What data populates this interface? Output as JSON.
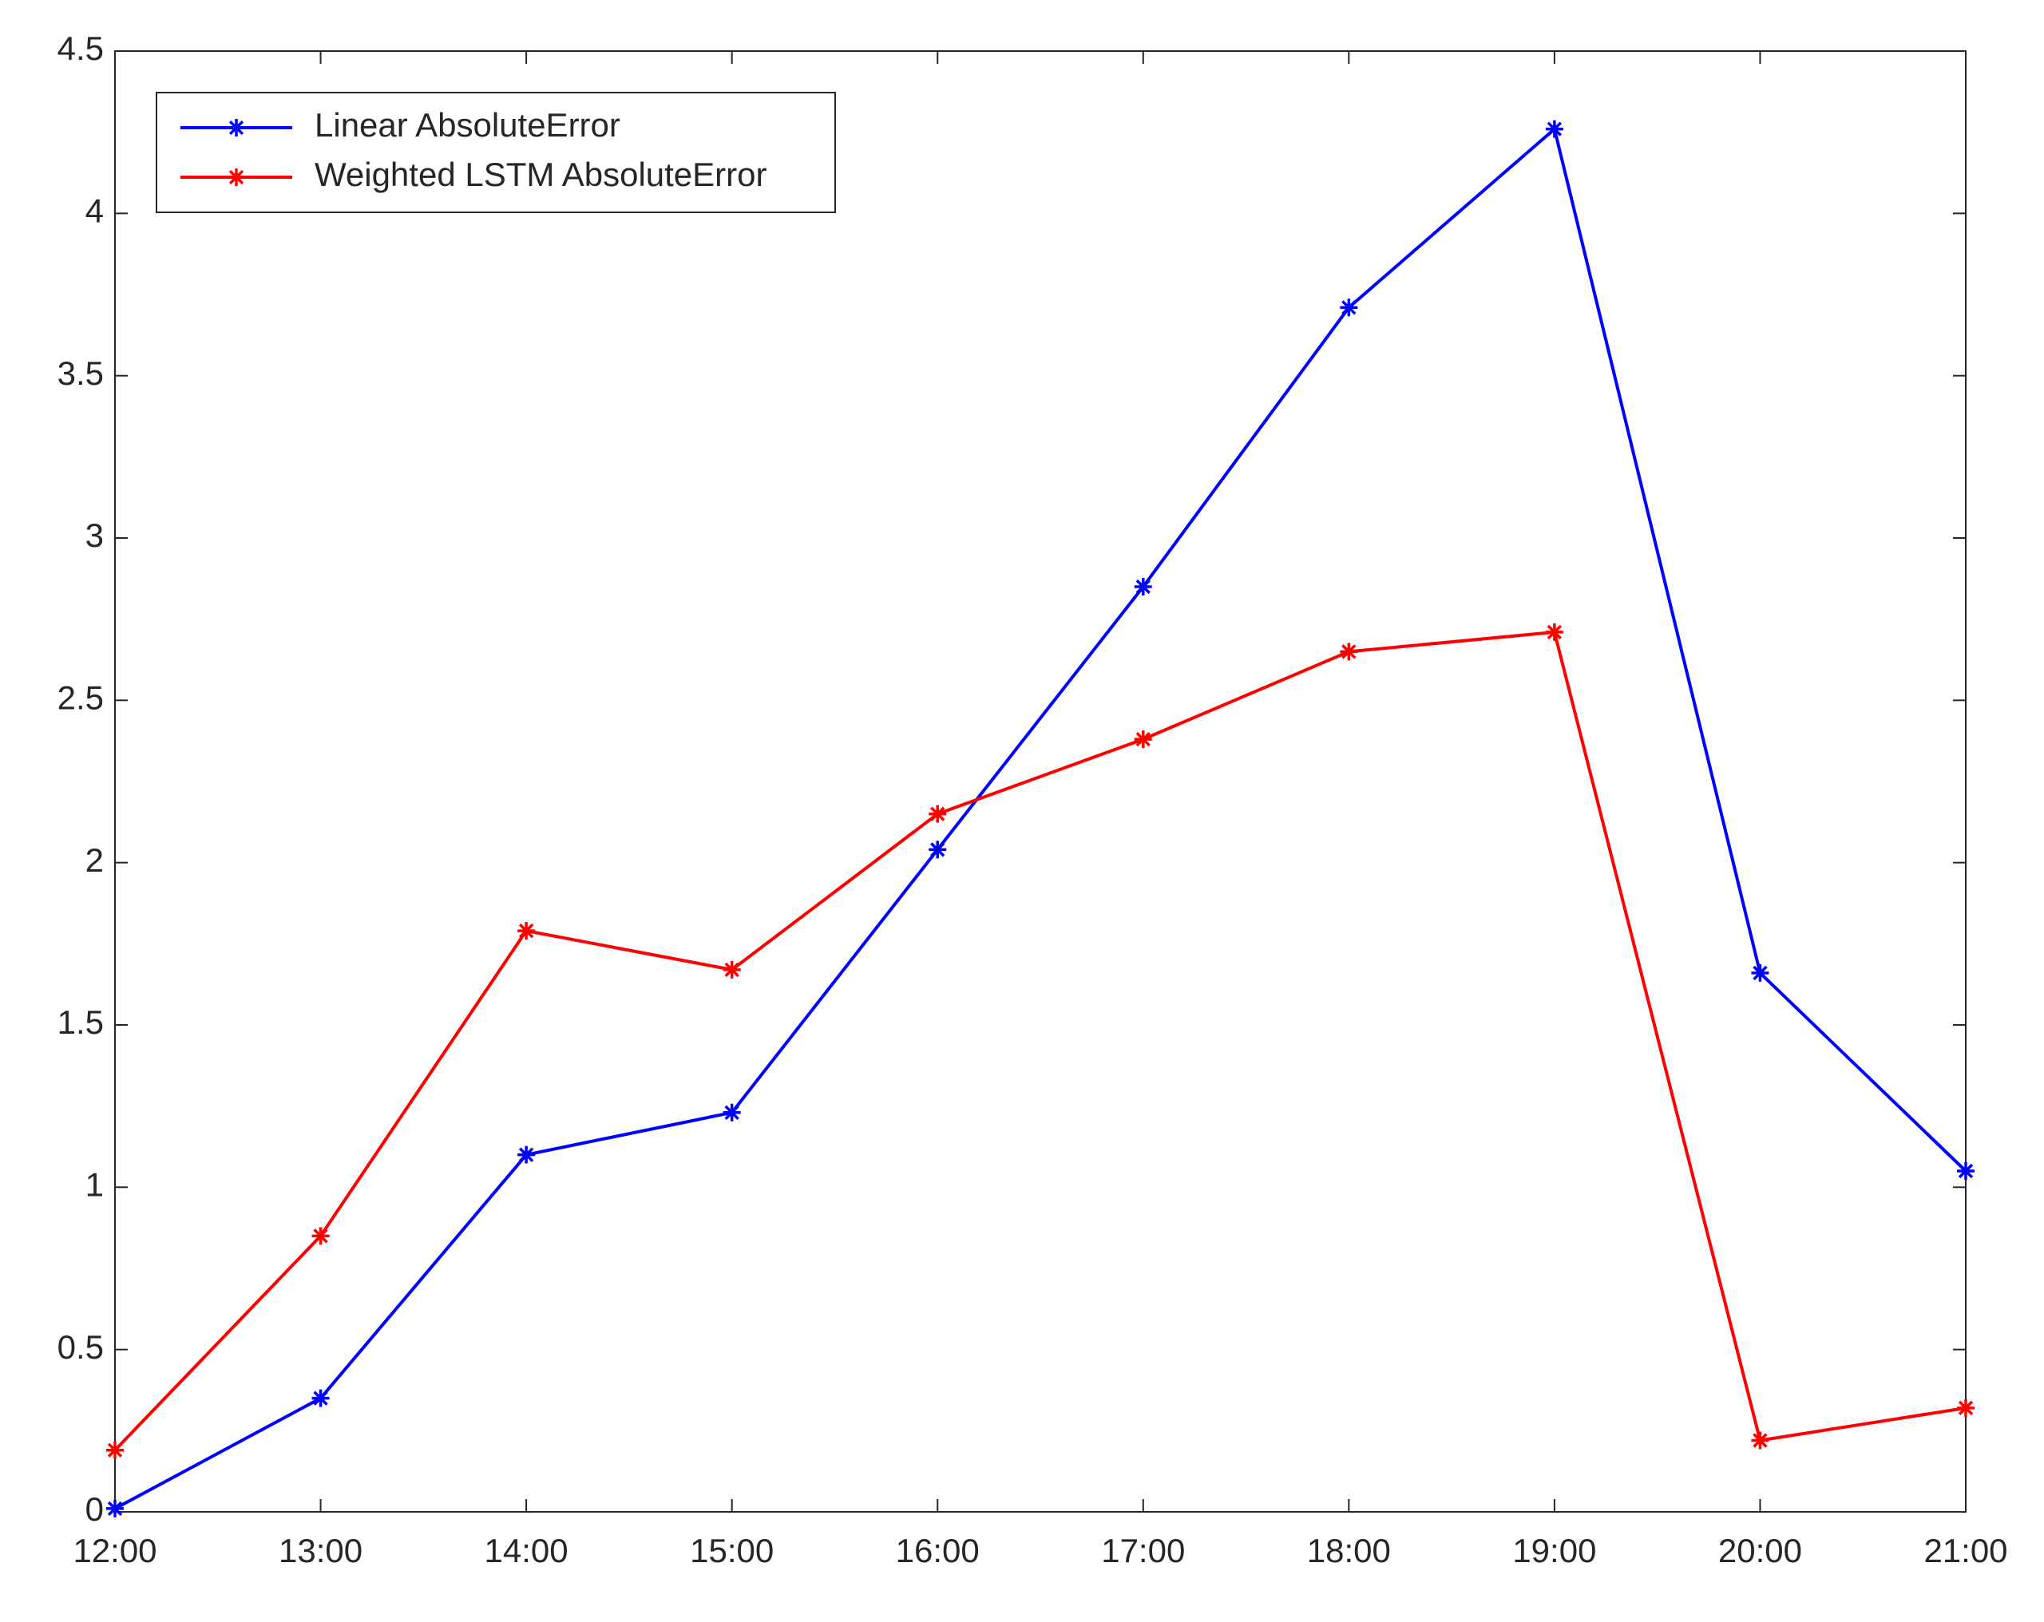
{
  "chart_data": {
    "type": "line",
    "categories": [
      "12:00",
      "13:00",
      "14:00",
      "15:00",
      "16:00",
      "17:00",
      "18:00",
      "19:00",
      "20:00",
      "21:00"
    ],
    "series": [
      {
        "name": "Linear AbsoluteError",
        "color": "#0000ff",
        "values": [
          0.01,
          0.35,
          1.1,
          1.23,
          2.04,
          2.85,
          3.71,
          4.26,
          1.66,
          1.05
        ]
      },
      {
        "name": "Weighted LSTM AbsoluteError",
        "color": "#ff0000",
        "values": [
          0.19,
          0.85,
          1.79,
          1.67,
          2.15,
          2.38,
          2.65,
          2.71,
          0.22,
          0.32
        ]
      }
    ],
    "ylim": [
      0,
      4.5
    ],
    "yticks": [
      0,
      0.5,
      1,
      1.5,
      2,
      2.5,
      3,
      3.5,
      4,
      4.5
    ],
    "legend": "upper-left"
  }
}
